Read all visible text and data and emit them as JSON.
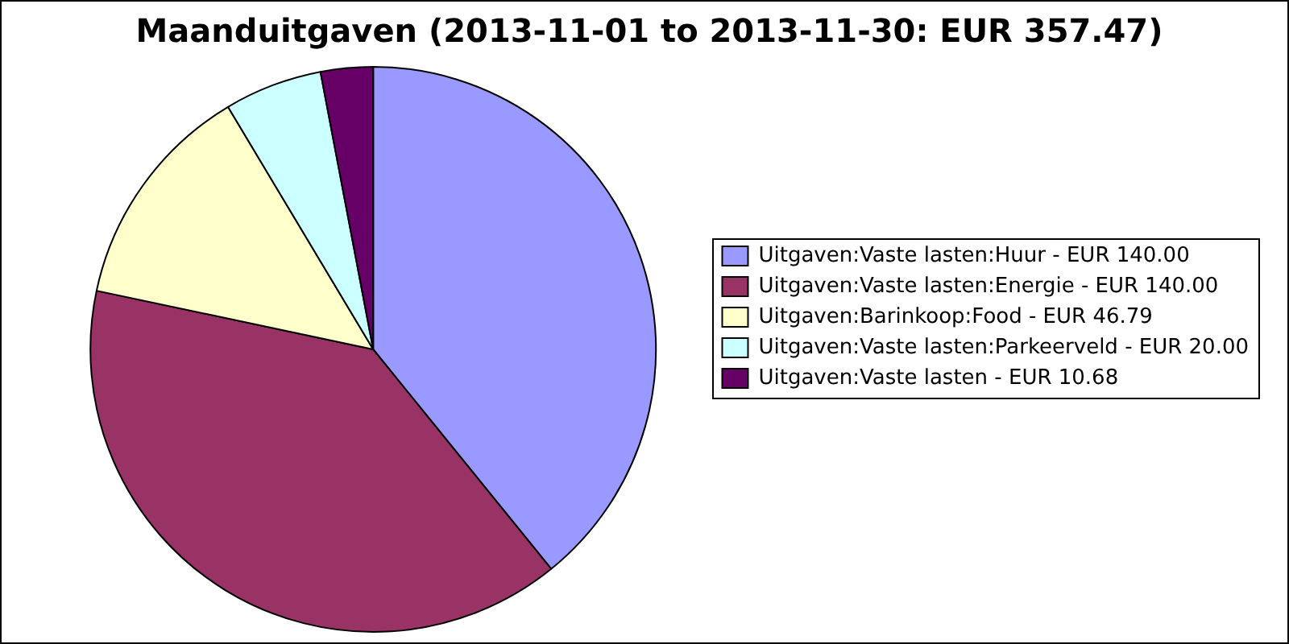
{
  "chart_data": {
    "type": "pie",
    "title": "Maanduitgaven (2013-11-01 to 2013-11-30: EUR 357.47)",
    "categories": [
      "Uitgaven:Vaste lasten:Huur - EUR 140.00",
      "Uitgaven:Vaste lasten:Energie - EUR 140.00",
      "Uitgaven:Barinkoop:Food - EUR 46.79",
      "Uitgaven:Vaste lasten:Parkeerveld - EUR 20.00",
      "Uitgaven:Vaste lasten - EUR 10.68"
    ],
    "values": [
      140,
      140,
      46.79,
      20,
      10.68
    ],
    "colors": [
      "#9999ff",
      "#993366",
      "#ffffcc",
      "#ccffff",
      "#660066"
    ],
    "legend": "right"
  }
}
